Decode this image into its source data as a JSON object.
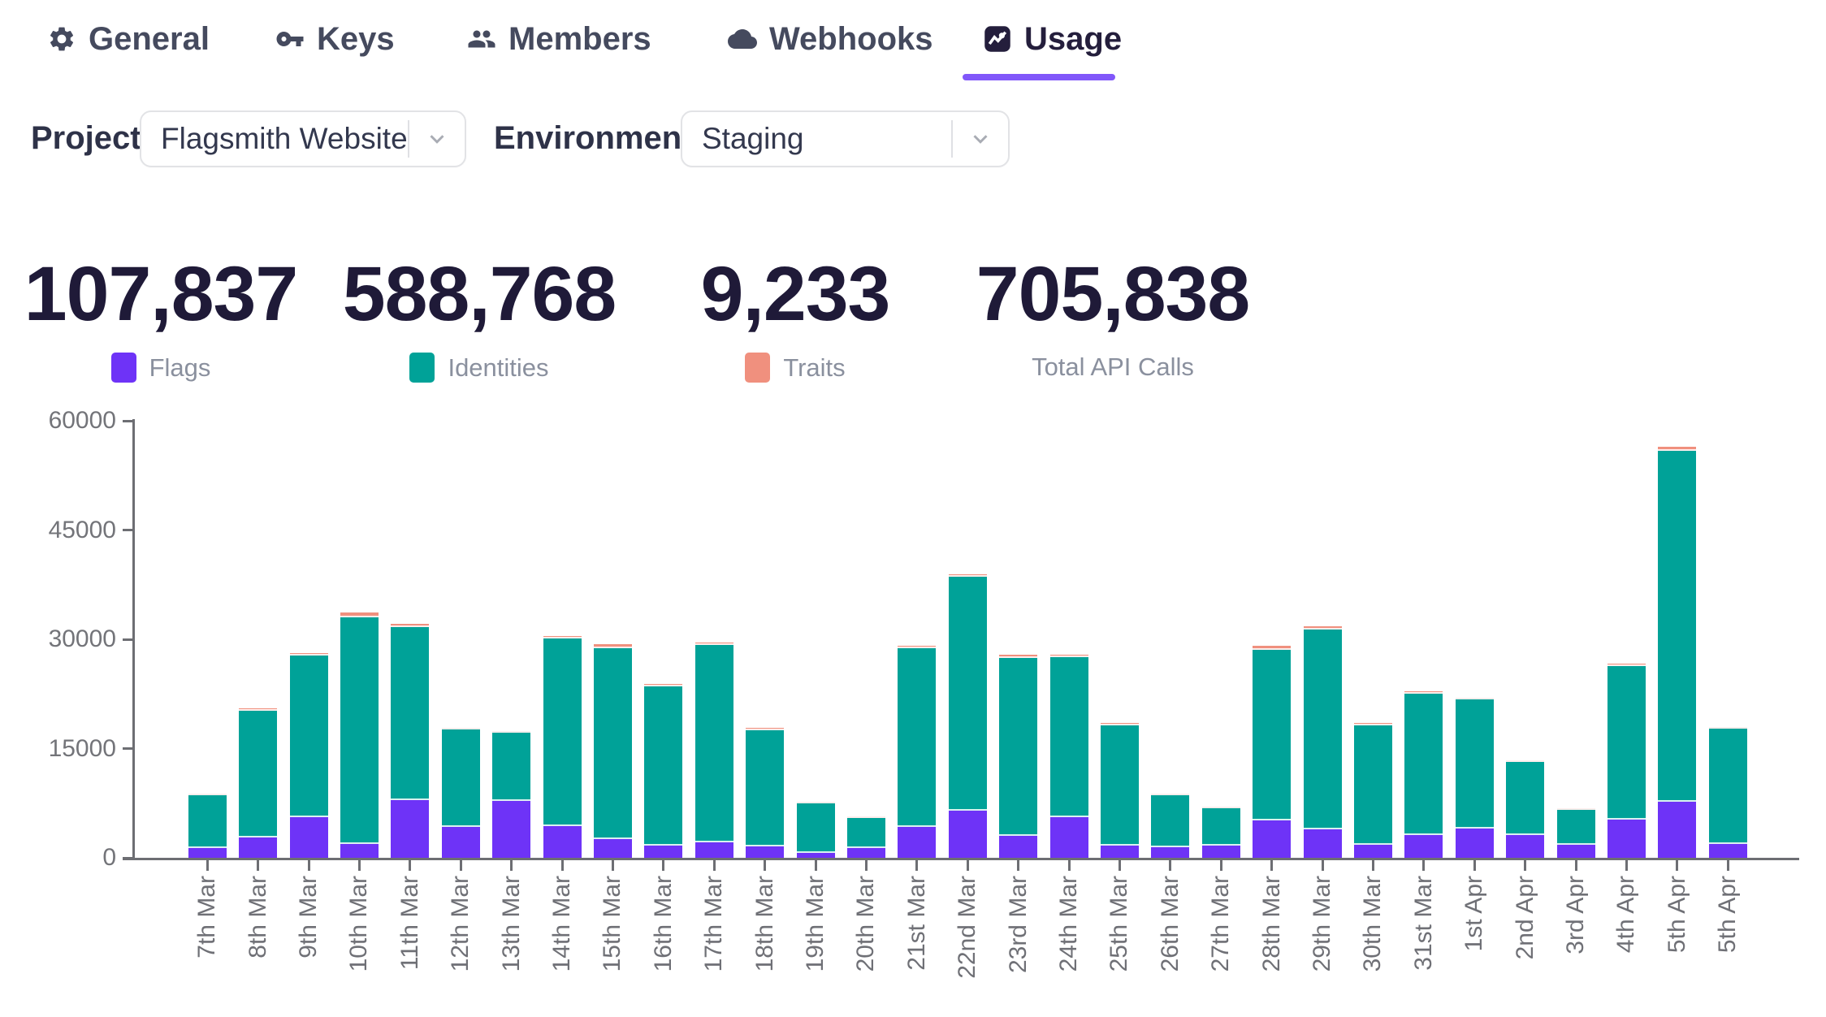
{
  "tabs": [
    {
      "label": "General",
      "icon": "gear-icon",
      "active": false
    },
    {
      "label": "Keys",
      "icon": "key-icon",
      "active": false
    },
    {
      "label": "Members",
      "icon": "members-icon",
      "active": false
    },
    {
      "label": "Webhooks",
      "icon": "cloud-icon",
      "active": false
    },
    {
      "label": "Usage",
      "icon": "usage-chart-icon",
      "active": true
    }
  ],
  "filters": {
    "project": {
      "label": "Project",
      "value": "Flagsmith Website"
    },
    "environment": {
      "label": "Environment",
      "value": "Staging"
    }
  },
  "stats": [
    {
      "value": "107,837",
      "label": "Flags",
      "color": "#6e33f7"
    },
    {
      "value": "588,768",
      "label": "Identities",
      "color": "#00a298"
    },
    {
      "value": "9,233",
      "label": "Traits",
      "color": "#f0907e"
    },
    {
      "value": "705,838",
      "label": "Total API Calls",
      "color": null
    }
  ],
  "colors": {
    "accent_underline": "#8157fa",
    "flags": "#6e33f7",
    "identities": "#00a298",
    "traits": "#f0907e",
    "axis": "#6d6e73"
  },
  "chart_data": {
    "type": "bar",
    "stacked": true,
    "title": "",
    "xlabel": "",
    "ylabel": "",
    "ylim": [
      0,
      60000
    ],
    "yticks": [
      0,
      15000,
      30000,
      45000,
      60000
    ],
    "grid": false,
    "legend_position": "top",
    "categories": [
      "7th Mar",
      "8th Mar",
      "9th Mar",
      "10th Mar",
      "11th Mar",
      "12th Mar",
      "13th Mar",
      "14th Mar",
      "15th Mar",
      "16th Mar",
      "17th Mar",
      "18th Mar",
      "19th Mar",
      "20th Mar",
      "21st Mar",
      "22nd Mar",
      "23rd Mar",
      "24th Mar",
      "25th Mar",
      "26th Mar",
      "27th Mar",
      "28th Mar",
      "29th Mar",
      "30th Mar",
      "31st Mar",
      "1st Apr",
      "2nd Apr",
      "3rd Apr",
      "4th Apr",
      "5th Apr",
      "5th Apr"
    ],
    "series": [
      {
        "name": "Flags",
        "color": "#6e33f7",
        "values": [
          1350,
          2830,
          5610,
          1870,
          7910,
          4260,
          7790,
          4330,
          2550,
          1670,
          2070,
          1550,
          680,
          1350,
          4220,
          6440,
          3020,
          5610,
          1670,
          1430,
          1670,
          5130,
          3940,
          1830,
          3140,
          4060,
          3070,
          1750,
          5210,
          7710,
          1870
        ]
      },
      {
        "name": "Identities",
        "color": "#00a298",
        "values": [
          7230,
          17330,
          22190,
          31100,
          23800,
          13390,
          9420,
          25810,
          26210,
          21900,
          27150,
          15960,
          6750,
          4120,
          24570,
          32110,
          24460,
          21930,
          16500,
          7150,
          5170,
          23460,
          27380,
          16360,
          19350,
          17670,
          10100,
          4850,
          21080,
          48180,
          15880
        ]
      },
      {
        "name": "Traits",
        "color": "#f0907e",
        "values": [
          210,
          370,
          340,
          710,
          370,
          80,
          80,
          280,
          570,
          340,
          370,
          370,
          30,
          20,
          280,
          400,
          430,
          400,
          340,
          30,
          60,
          490,
          490,
          340,
          430,
          280,
          50,
          20,
          380,
          510,
          250
        ]
      }
    ]
  }
}
